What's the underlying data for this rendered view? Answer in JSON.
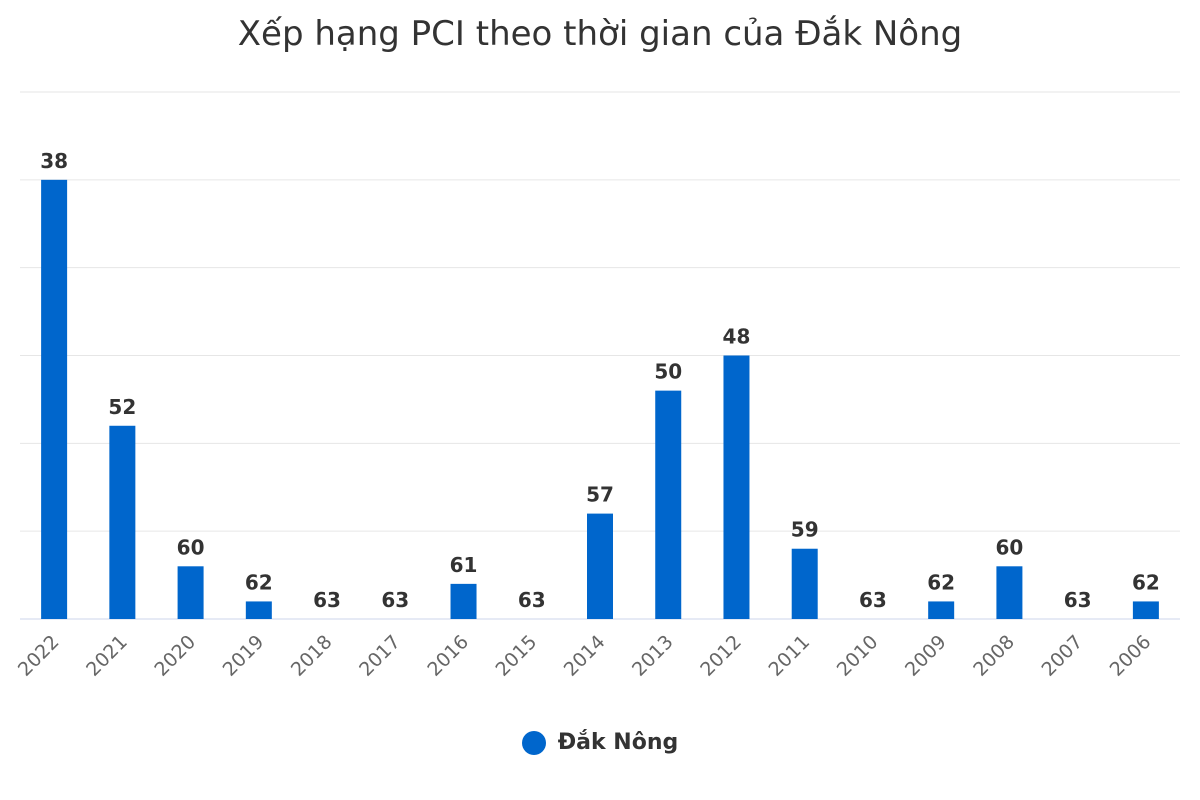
{
  "chart_data": {
    "type": "bar",
    "title": "Xếp hạng PCI theo thời gian của Đắk Nông",
    "categories": [
      "2022",
      "2021",
      "2020",
      "2019",
      "2018",
      "2017",
      "2016",
      "2015",
      "2014",
      "2013",
      "2012",
      "2011",
      "2010",
      "2009",
      "2008",
      "2007",
      "2006"
    ],
    "series": [
      {
        "name": "Đắk Nông",
        "color": "#0066cc",
        "values": [
          38,
          52,
          60,
          62,
          63,
          63,
          61,
          63,
          57,
          50,
          48,
          59,
          63,
          62,
          60,
          63,
          62
        ]
      }
    ],
    "y_axis": {
      "reversed": true,
      "labels_visible": false,
      "range": [
        63,
        33
      ],
      "grid": true
    },
    "legend_position": "bottom-center"
  }
}
